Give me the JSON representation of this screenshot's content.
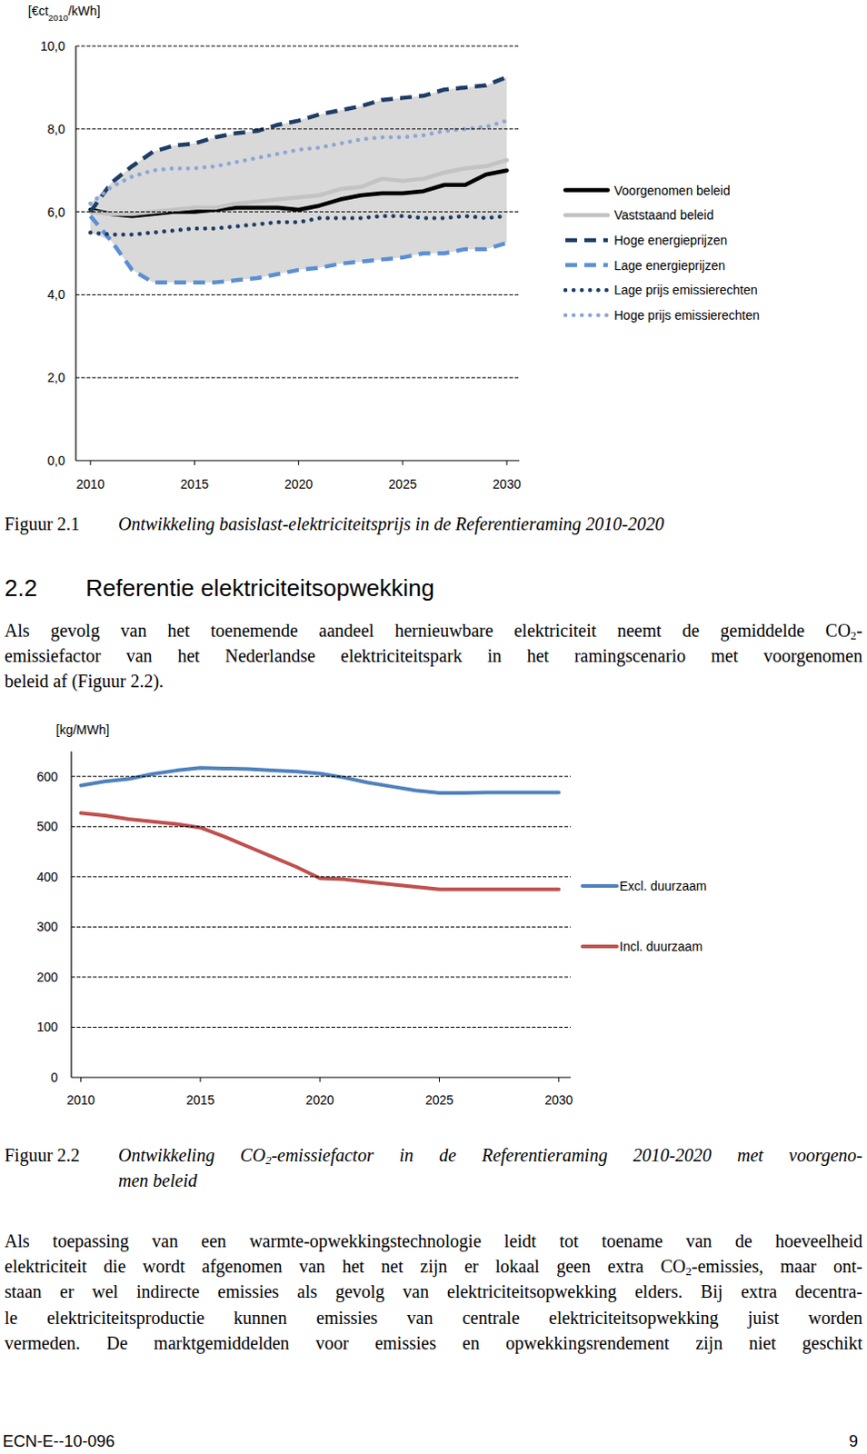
{
  "chart_data": [
    {
      "type": "line",
      "y_label": "[€ct2010/kWh]",
      "x": [
        2010,
        2011,
        2012,
        2013,
        2014,
        2015,
        2016,
        2017,
        2018,
        2019,
        2020,
        2021,
        2022,
        2023,
        2024,
        2025,
        2026,
        2027,
        2028,
        2029,
        2030
      ],
      "xlim": [
        2009.3,
        2030.6
      ],
      "xticks": [
        2010,
        2015,
        2020,
        2025,
        2030
      ],
      "ylim": [
        0,
        10
      ],
      "yticks": [
        {
          "value": 0,
          "label": "0,0"
        },
        {
          "value": 2,
          "label": "2,0"
        },
        {
          "value": 4,
          "label": "4,0"
        },
        {
          "value": 6,
          "label": "6,0"
        },
        {
          "value": 8,
          "label": "8,0"
        },
        {
          "value": 10,
          "label": "10,0"
        }
      ],
      "grid": true,
      "legend": "right",
      "series": [
        {
          "name": "Voorgenomen beleid",
          "color": "#000000",
          "line_style": "solid",
          "values": [
            6.05,
            5.95,
            5.9,
            5.95,
            6.0,
            6.0,
            6.05,
            6.1,
            6.1,
            6.1,
            6.05,
            6.15,
            6.3,
            6.4,
            6.45,
            6.45,
            6.5,
            6.65,
            6.65,
            6.9,
            7.0
          ]
        },
        {
          "name": "Vaststaand beleid",
          "color": "#c3c3c3",
          "line_style": "solid",
          "values": [
            6.0,
            5.95,
            5.95,
            6.0,
            6.05,
            6.1,
            6.1,
            6.2,
            6.25,
            6.3,
            6.35,
            6.4,
            6.55,
            6.6,
            6.8,
            6.75,
            6.8,
            6.95,
            7.05,
            7.1,
            7.25
          ]
        },
        {
          "name": "Hoge energieprijzen",
          "color": "#1f3d66",
          "line_style": "dashed",
          "values": [
            6.0,
            6.7,
            7.1,
            7.45,
            7.6,
            7.65,
            7.8,
            7.9,
            7.95,
            8.1,
            8.2,
            8.35,
            8.45,
            8.55,
            8.7,
            8.75,
            8.8,
            8.95,
            9.0,
            9.05,
            9.25
          ]
        },
        {
          "name": "Lage energieprijzen",
          "color": "#5b8fd4",
          "line_style": "dashed",
          "values": [
            5.9,
            5.3,
            4.6,
            4.3,
            4.3,
            4.3,
            4.3,
            4.35,
            4.4,
            4.5,
            4.6,
            4.65,
            4.75,
            4.8,
            4.85,
            4.9,
            5.0,
            5.0,
            5.1,
            5.1,
            5.25
          ]
        },
        {
          "name": "Lage prijs emissierechten",
          "color": "#1f3d66",
          "line_style": "dotted",
          "values": [
            5.5,
            5.45,
            5.45,
            5.5,
            5.55,
            5.6,
            5.6,
            5.65,
            5.7,
            5.75,
            5.75,
            5.85,
            5.85,
            5.85,
            5.9,
            5.9,
            5.85,
            5.85,
            5.9,
            5.85,
            5.9
          ]
        },
        {
          "name": "Hoge prijs emissierechten",
          "color": "#8ca7d1",
          "line_style": "dotted",
          "values": [
            6.2,
            6.6,
            6.85,
            7.0,
            7.05,
            7.05,
            7.1,
            7.2,
            7.3,
            7.4,
            7.5,
            7.55,
            7.65,
            7.75,
            7.8,
            7.8,
            7.85,
            7.95,
            8.0,
            8.05,
            8.2
          ]
        }
      ]
    },
    {
      "type": "line",
      "y_label": "[kg/MWh]",
      "x": [
        2010,
        2011,
        2012,
        2013,
        2014,
        2015,
        2016,
        2017,
        2018,
        2019,
        2020,
        2021,
        2022,
        2023,
        2024,
        2025,
        2026,
        2027,
        2028,
        2029,
        2030
      ],
      "xlim": [
        2009.6,
        2030.5
      ],
      "xticks": [
        2010,
        2015,
        2020,
        2025,
        2030
      ],
      "ylim": [
        0,
        650
      ],
      "yticks": [
        0,
        100,
        200,
        300,
        400,
        500,
        600
      ],
      "grid": true,
      "legend": "right",
      "series": [
        {
          "name": "Excl. duurzaam",
          "color": "#4f81bd",
          "line_style": "solid",
          "values": [
            582,
            590,
            595,
            605,
            612,
            617,
            616,
            615,
            612,
            610,
            606,
            598,
            588,
            580,
            572,
            567,
            567,
            568,
            568,
            568,
            568
          ]
        },
        {
          "name": "Incl. duurzaam",
          "color": "#c0504d",
          "line_style": "solid",
          "values": [
            527,
            522,
            515,
            510,
            505,
            498,
            480,
            460,
            440,
            420,
            397,
            395,
            390,
            385,
            380,
            375,
            375,
            375,
            375,
            375,
            375
          ]
        }
      ]
    }
  ],
  "page": {
    "captions": [
      {
        "label": "Figuur 2.1",
        "lines": [
          "Ontwikkeling basislast-elektriciteitsprijs in de Referentieraming 2010-2020"
        ]
      },
      {
        "label": "Figuur 2.2",
        "lines": [
          "Ontwikkeling CO2-emissiefactor in de Referentieraming 2010-2020 met voorgeno-",
          "men beleid"
        ]
      }
    ],
    "heading": {
      "number": "2.2",
      "title": "Referentie elektriciteitsopwekking"
    },
    "paragraphs": [
      [
        "Als gevolg van het toenemende aandeel hernieuwbare elektriciteit neemt de gemiddelde CO2-",
        "emissiefactor van het Nederlandse elektriciteitspark in het ramingscenario met voorgenomen",
        "beleid af (Figuur 2.2)."
      ],
      [
        "Als toepassing van een warmte-opwekkingstechnologie leidt tot toename van de hoeveelheid",
        "elektriciteit die wordt afgenomen van het net zijn er lokaal geen extra CO2-emissies, maar ont-",
        "staan er wel indirecte emissies als gevolg van elektriciteitsopwekking elders. Bij extra decentra-",
        "le elektriciteitsproductie kunnen emissies van centrale elektriciteitsopwekking juist worden",
        "vermeden. De marktgemiddelden voor emissies en opwekkingsrendement zijn niet geschikt"
      ]
    ],
    "footer": {
      "left": "ECN-E--10-096",
      "right": "9"
    }
  }
}
